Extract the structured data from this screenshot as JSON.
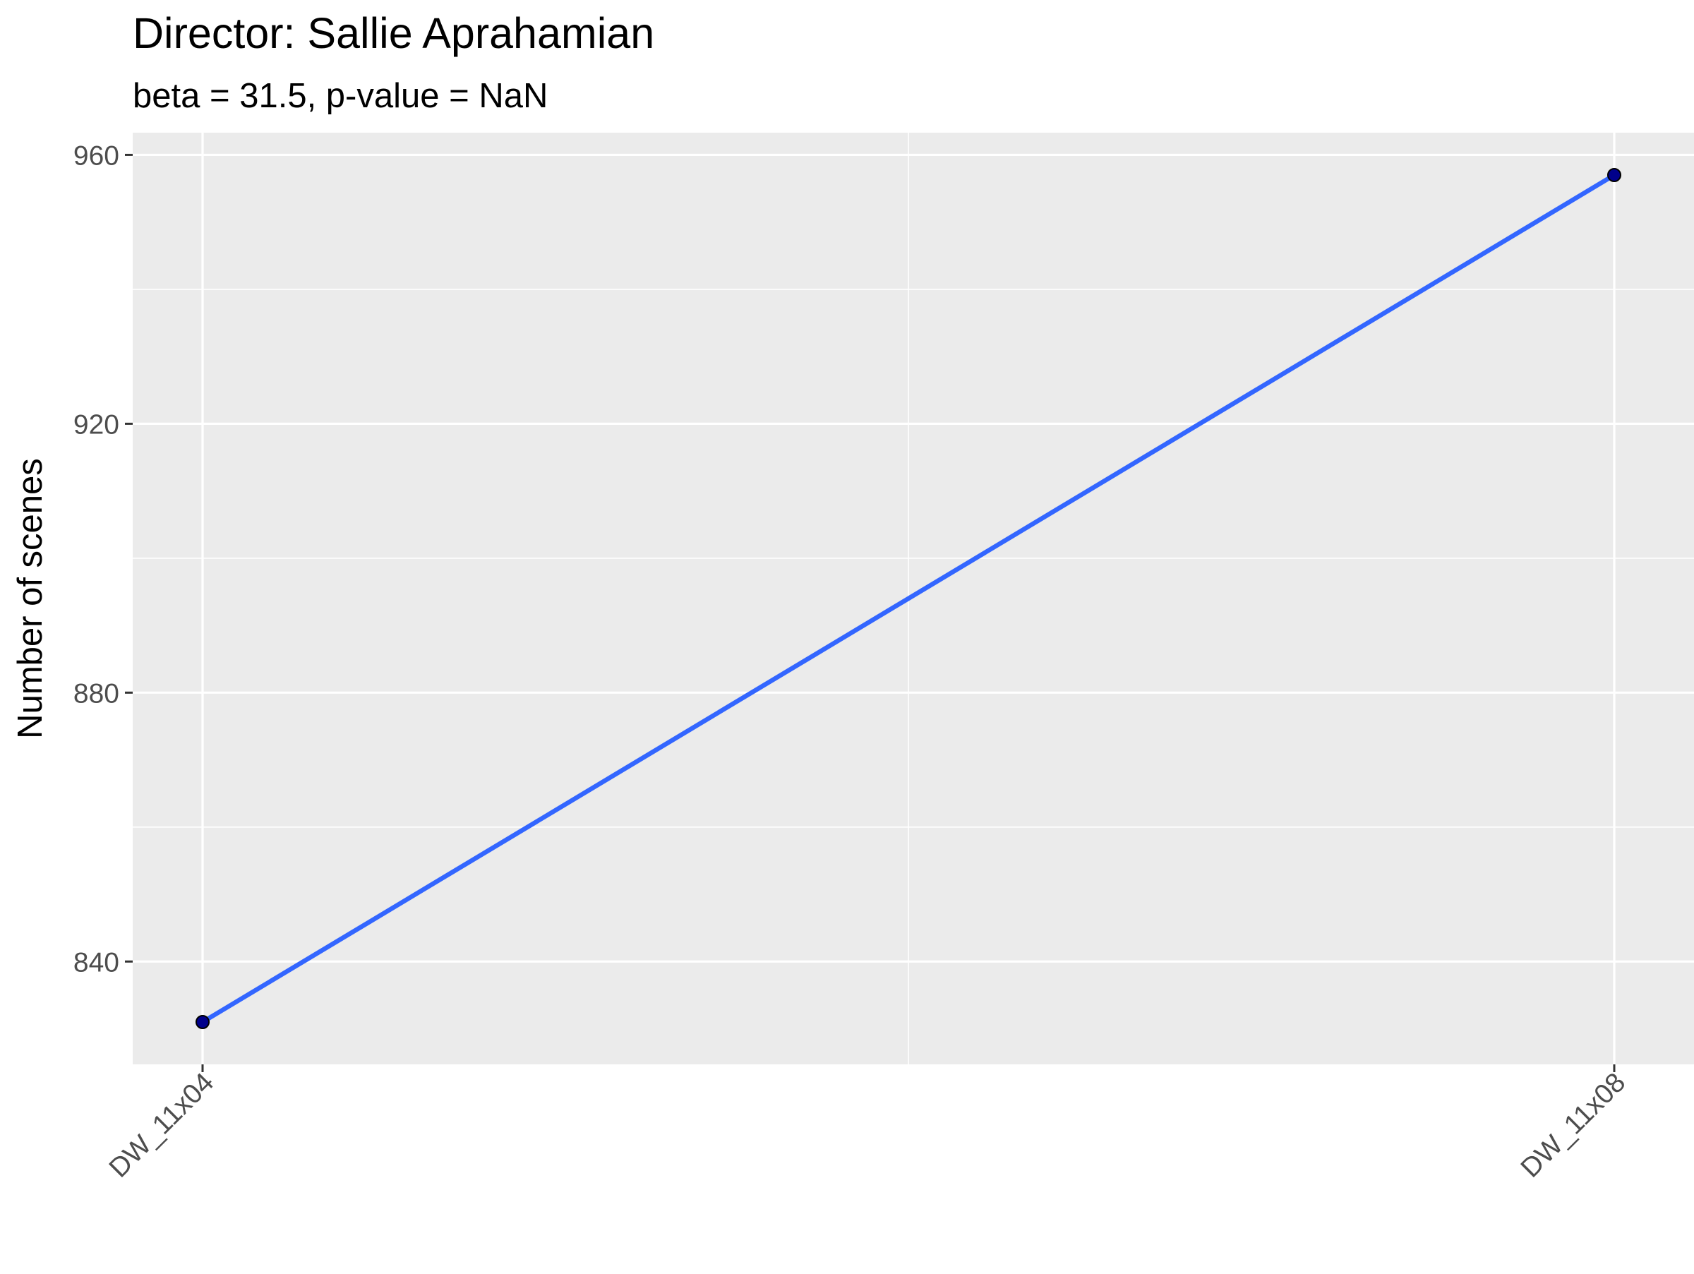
{
  "chart_data": {
    "type": "line",
    "title": "Director: Sallie Aprahamian",
    "subtitle": "beta = 31.5, p-value = NaN",
    "xlabel": "",
    "ylabel": "Number of scenes",
    "categories": [
      "DW_11x04",
      "DW_11x08"
    ],
    "values": [
      831,
      957
    ],
    "ylim": [
      824.7,
      963.3
    ],
    "yticks": [
      840,
      880,
      920,
      960
    ],
    "grid": true,
    "legend": "none",
    "colors": {
      "panel": "#EBEBEB",
      "grid": "#FFFFFF",
      "line": "#3366FF",
      "point_fill": "#00008B",
      "point_stroke": "#000000",
      "tick_label": "#4D4D4D",
      "text": "#000000"
    }
  }
}
